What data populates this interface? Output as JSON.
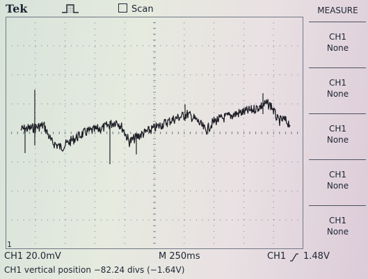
{
  "header": {
    "brand": "Tek",
    "trigger_status_icon": "trigger-pulse-icon",
    "scan_label": "Scan",
    "scan_checked": false
  },
  "measure_menu": {
    "title": "MEASURE",
    "items": [
      {
        "channel": "CH1",
        "value": "None"
      },
      {
        "channel": "CH1",
        "value": "None"
      },
      {
        "channel": "CH1",
        "value": "None"
      },
      {
        "channel": "CH1",
        "value": "None"
      },
      {
        "channel": "CH1",
        "value": "None"
      }
    ]
  },
  "readouts": {
    "ch1_scale": "CH1  20.0mV",
    "timebase": "M 250ms",
    "trigger_channel": "CH1",
    "trigger_slope_icon": "rising-edge-icon",
    "trigger_level": "1.48V",
    "ground_marker": "1"
  },
  "status_message": "CH1 vertical position −82.24 divs (−1.64V)",
  "colors": {
    "trace": "#1e1e26",
    "text": "#1c2533",
    "grid": "#6f7784"
  }
}
